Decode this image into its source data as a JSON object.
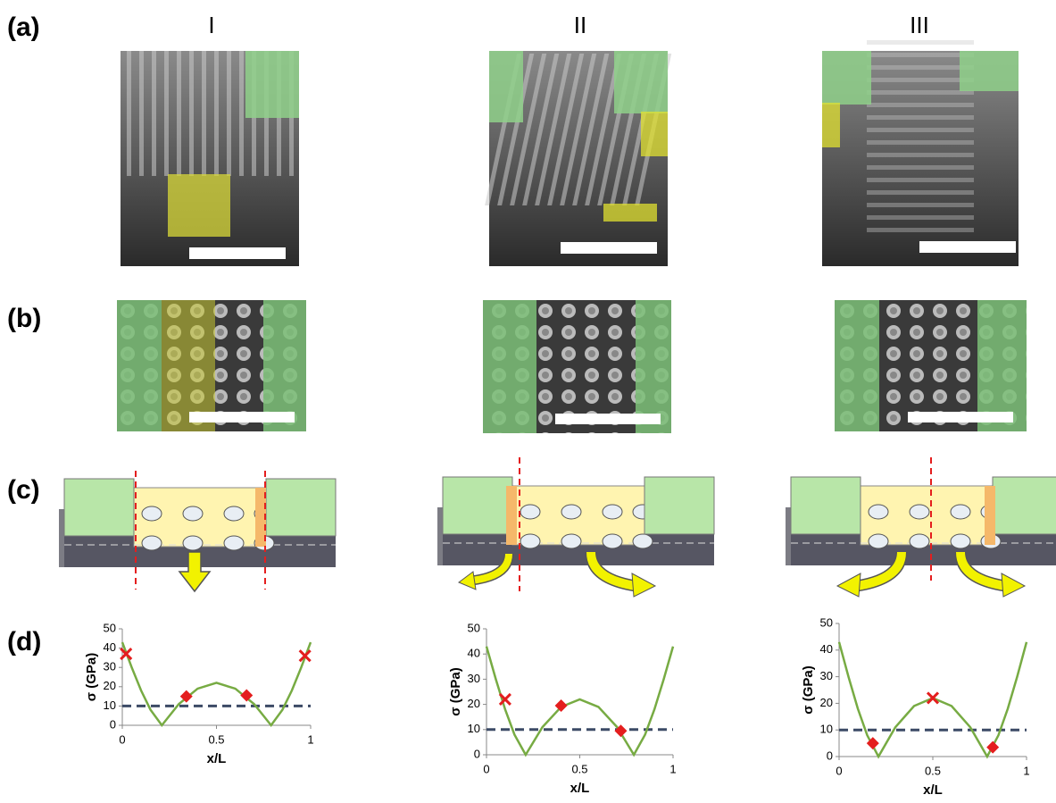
{
  "panels": [
    "(a)",
    "(b)",
    "(c)",
    "(d)"
  ],
  "columns": [
    "I",
    "II",
    "III"
  ],
  "chart_data": [
    {
      "type": "line",
      "xlabel": "x/L",
      "ylabel": "σ (GPa)",
      "xlim": [
        0,
        1
      ],
      "xticks": [
        0,
        0.5,
        1
      ],
      "ylim": [
        0,
        50
      ],
      "yticks": [
        0,
        10,
        20,
        30,
        40,
        50
      ],
      "threshold": 10,
      "threshold_color": "#3c4a66",
      "series": [
        {
          "color": "#77ab43",
          "marker": "line",
          "x": [
            0,
            0.05,
            0.1,
            0.15,
            0.21,
            0.3,
            0.4,
            0.5,
            0.6,
            0.7,
            0.79,
            0.85,
            0.9,
            0.95,
            1
          ],
          "values": [
            43,
            30,
            18,
            8,
            0,
            11,
            19,
            22,
            19,
            11,
            0,
            8,
            18,
            30,
            43
          ]
        },
        {
          "color": "#e41e1e",
          "marker": "cross",
          "x": [
            0.02,
            0.97
          ],
          "values": [
            37,
            36
          ]
        },
        {
          "color": "#e41e1e",
          "marker": "diamond",
          "x": [
            0.34,
            0.66
          ],
          "values": [
            15,
            15.5
          ]
        }
      ]
    },
    {
      "type": "line",
      "xlabel": "x/L",
      "ylabel": "σ (GPa)",
      "xlim": [
        0,
        1
      ],
      "xticks": [
        0,
        0.5,
        1
      ],
      "ylim": [
        0,
        50
      ],
      "yticks": [
        0,
        10,
        20,
        30,
        40,
        50
      ],
      "threshold": 10,
      "threshold_color": "#3c4a66",
      "series": [
        {
          "color": "#77ab43",
          "marker": "line",
          "x": [
            0,
            0.05,
            0.1,
            0.15,
            0.21,
            0.3,
            0.4,
            0.5,
            0.6,
            0.7,
            0.79,
            0.85,
            0.9,
            0.95,
            1
          ],
          "values": [
            43,
            30,
            18,
            8,
            0,
            11,
            19,
            22,
            19,
            11,
            0,
            8,
            18,
            30,
            43
          ]
        },
        {
          "color": "#e41e1e",
          "marker": "cross",
          "x": [
            0.1
          ],
          "values": [
            22
          ]
        },
        {
          "color": "#e41e1e",
          "marker": "diamond",
          "x": [
            0.4,
            0.72
          ],
          "values": [
            19.5,
            9.5
          ]
        }
      ]
    },
    {
      "type": "line",
      "xlabel": "x/L",
      "ylabel": "σ (GPa)",
      "xlim": [
        0,
        1
      ],
      "xticks": [
        0,
        0.5,
        1
      ],
      "ylim": [
        0,
        50
      ],
      "yticks": [
        0,
        10,
        20,
        30,
        40,
        50
      ],
      "threshold": 10,
      "threshold_color": "#3c4a66",
      "series": [
        {
          "color": "#77ab43",
          "marker": "line",
          "x": [
            0,
            0.05,
            0.1,
            0.15,
            0.21,
            0.3,
            0.4,
            0.5,
            0.6,
            0.7,
            0.79,
            0.85,
            0.9,
            0.95,
            1
          ],
          "values": [
            43,
            30,
            18,
            8,
            0,
            11,
            19,
            22,
            19,
            11,
            0,
            8,
            18,
            30,
            43
          ]
        },
        {
          "color": "#e41e1e",
          "marker": "cross",
          "x": [
            0.5
          ],
          "values": [
            22
          ]
        },
        {
          "color": "#e41e1e",
          "marker": "diamond",
          "x": [
            0.18,
            0.82
          ],
          "values": [
            5,
            3.5
          ]
        }
      ]
    }
  ]
}
